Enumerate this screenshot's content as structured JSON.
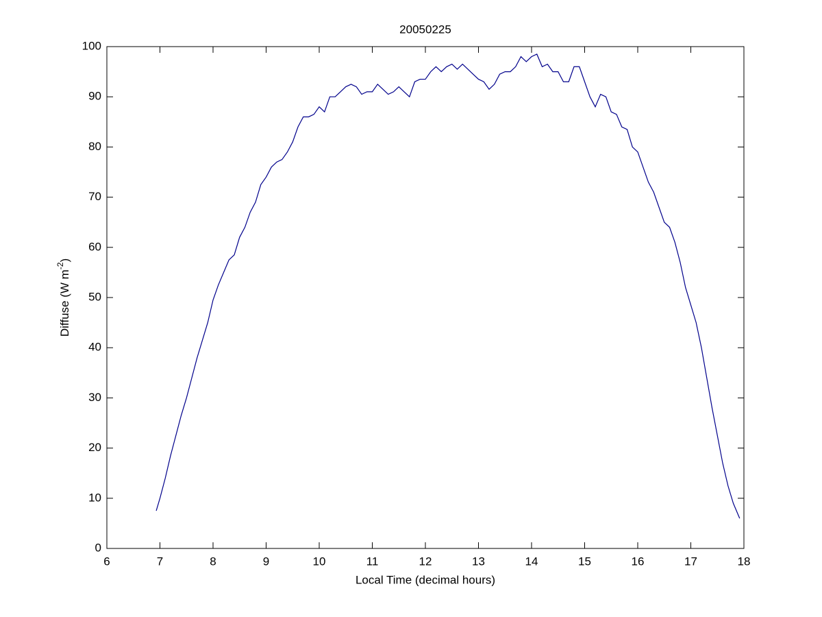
{
  "chart_data": {
    "type": "line",
    "title": "20050225",
    "xlabel": "Local Time (decimal hours)",
    "ylabel": {
      "text": "Diffuse (W m",
      "superscript": "-2",
      "suffix": ")"
    },
    "x": [
      6.93,
      7.0,
      7.1,
      7.2,
      7.3,
      7.4,
      7.5,
      7.6,
      7.7,
      7.8,
      7.9,
      8.0,
      8.1,
      8.2,
      8.3,
      8.4,
      8.5,
      8.6,
      8.7,
      8.8,
      8.9,
      9.0,
      9.1,
      9.2,
      9.3,
      9.4,
      9.5,
      9.6,
      9.7,
      9.8,
      9.9,
      10.0,
      10.1,
      10.2,
      10.3,
      10.4,
      10.5,
      10.6,
      10.7,
      10.8,
      10.9,
      11.0,
      11.1,
      11.2,
      11.3,
      11.4,
      11.5,
      11.6,
      11.7,
      11.8,
      11.9,
      12.0,
      12.1,
      12.2,
      12.3,
      12.4,
      12.5,
      12.6,
      12.7,
      12.8,
      12.9,
      13.0,
      13.1,
      13.2,
      13.3,
      13.4,
      13.5,
      13.6,
      13.7,
      13.8,
      13.9,
      14.0,
      14.1,
      14.2,
      14.3,
      14.4,
      14.5,
      14.6,
      14.7,
      14.8,
      14.9,
      15.0,
      15.1,
      15.2,
      15.3,
      15.4,
      15.5,
      15.6,
      15.7,
      15.8,
      15.9,
      16.0,
      16.1,
      16.2,
      16.3,
      16.4,
      16.5,
      16.6,
      16.7,
      16.8,
      16.9,
      17.0,
      17.1,
      17.2,
      17.3,
      17.4,
      17.5,
      17.6,
      17.7,
      17.8,
      17.92
    ],
    "series": [
      {
        "color": "#00008b",
        "values": [
          7.5,
          10,
          14,
          18.5,
          22.5,
          26.5,
          30,
          34,
          38,
          41.5,
          45,
          49.5,
          52.5,
          55,
          57.5,
          58.5,
          62,
          64,
          67,
          69,
          72.5,
          74,
          76,
          77,
          77.5,
          79,
          81,
          84,
          86,
          86,
          86.5,
          88,
          87,
          90,
          90,
          91,
          92,
          92.5,
          92,
          90.5,
          91,
          91,
          92.5,
          91.5,
          90.5,
          91,
          92,
          91,
          90,
          93,
          93.5,
          93.5,
          95,
          96,
          95,
          96,
          96.5,
          95.5,
          96.5,
          95.5,
          94.5,
          93.5,
          93,
          91.5,
          92.5,
          94.5,
          95,
          95,
          96,
          98,
          97,
          98,
          98.5,
          96,
          96.5,
          95,
          95,
          93,
          93,
          96,
          96,
          93,
          90,
          88,
          90.5,
          90,
          87,
          86.5,
          84,
          83.5,
          80,
          79,
          76,
          73,
          71,
          68,
          65,
          64,
          61,
          57,
          52,
          48.5,
          45,
          40,
          34,
          28,
          22.5,
          17,
          12.5,
          9,
          6
        ]
      }
    ],
    "xlim": [
      6,
      18
    ],
    "xticks": [
      6,
      7,
      8,
      9,
      10,
      11,
      12,
      13,
      14,
      15,
      16,
      17,
      18
    ],
    "ylim": [
      0,
      100
    ],
    "yticks": [
      0,
      10,
      20,
      30,
      40,
      50,
      60,
      70,
      80,
      90,
      100
    ]
  }
}
